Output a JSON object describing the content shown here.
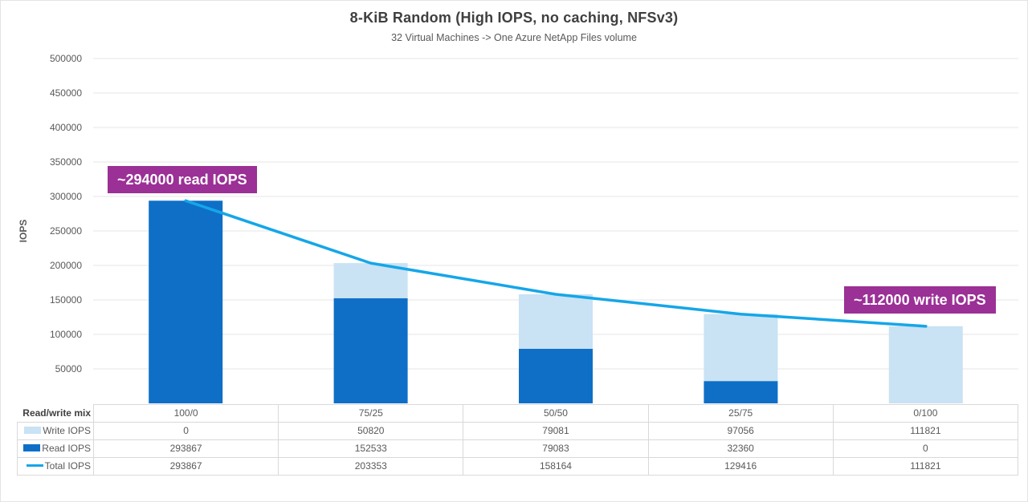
{
  "chart_data": {
    "type": "bar",
    "subtype": "stacked-bars-with-total-line",
    "title": "8-KiB Random (High IOPS, no caching, NFSv3)",
    "subtitle": "32 Virtual Machines -> One Azure NetApp Files volume",
    "ylabel": "IOPS",
    "ylim": [
      0,
      500000
    ],
    "ytick_step": 50000,
    "grid": "horizontal",
    "legend_position": "table-rows-left",
    "categories": [
      "100/0",
      "75/25",
      "50/50",
      "25/75",
      "0/100"
    ],
    "x_axis_row_label": "Read/write mix",
    "series": [
      {
        "name": "Write IOPS",
        "type": "bar",
        "color": "#C9E2F4",
        "values": [
          0,
          50820,
          79081,
          97056,
          111821
        ]
      },
      {
        "name": "Read IOPS",
        "type": "bar",
        "color": "#0F6FC6",
        "values": [
          293867,
          152533,
          79083,
          32360,
          0
        ]
      },
      {
        "name": "Total IOPS",
        "type": "line",
        "color": "#15A6E8",
        "values": [
          293867,
          203353,
          158164,
          129416,
          111821
        ]
      }
    ],
    "stack_order": [
      "Read IOPS",
      "Write IOPS"
    ],
    "annotations": [
      {
        "text": "~294000 read IOPS",
        "target": "100/0 read bar"
      },
      {
        "text": "~112000 write IOPS",
        "target": "0/100 write bar"
      }
    ],
    "annotation_color": "#9B3096",
    "colors": {
      "grid": "#E6E6E6",
      "table_border": "#D9D9D9",
      "tick_text": "#595959",
      "title_text": "#3F3F3F"
    }
  }
}
